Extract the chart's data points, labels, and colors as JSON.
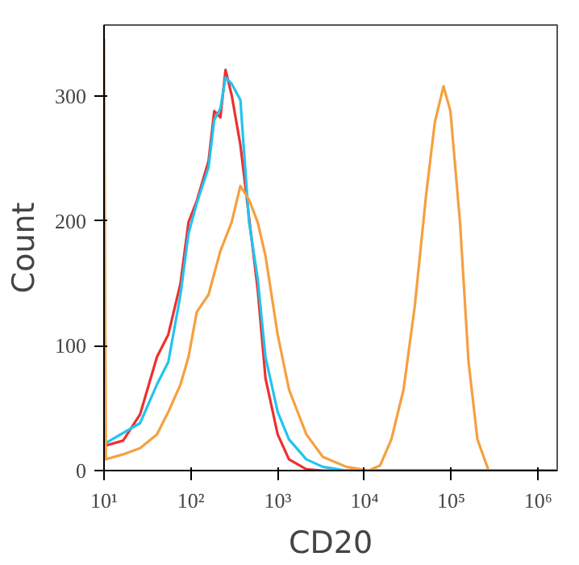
{
  "chart_data": {
    "type": "line",
    "xlabel": "CD20",
    "ylabel": "Count",
    "log": "x",
    "marker": "none",
    "line_style": "solid",
    "xlim": [
      10,
      1660000
    ],
    "ylim": [
      0,
      357
    ],
    "xticks": [
      {
        "value": 10,
        "label": "10¹"
      },
      {
        "value": 100,
        "label": "10²"
      },
      {
        "value": 1000,
        "label": "10³"
      },
      {
        "value": 10000,
        "label": "10⁴"
      },
      {
        "value": 100000,
        "label": "10⁵"
      },
      {
        "value": 1000000,
        "label": "10⁶"
      }
    ],
    "yticks": [
      0,
      100,
      200,
      300
    ],
    "series": [
      {
        "color": "#ee3030",
        "x": [
          10.5,
          16.6,
          26,
          40.7,
          55,
          76,
          94,
          117,
          160,
          186,
          219,
          251,
          295,
          372,
          468,
          589,
          724,
          1000,
          1350,
          2140,
          3310,
          1660000
        ],
        "values": [
          20,
          24,
          45,
          91,
          109,
          150,
          199,
          216,
          248,
          288,
          283,
          321,
          301,
          261,
          203,
          145,
          74,
          29,
          9,
          1,
          0,
          0
        ]
      },
      {
        "color": "#22c4ee",
        "x": [
          10.5,
          26,
          40.7,
          55,
          76,
          94,
          117,
          160,
          186,
          219,
          251,
          295,
          372,
          468,
          589,
          724,
          1000,
          1350,
          2140,
          3310,
          6170,
          1660000
        ],
        "values": [
          22,
          38,
          69,
          87,
          141,
          190,
          214,
          243,
          281,
          290,
          315,
          310,
          297,
          199,
          154,
          91,
          47,
          25,
          9,
          3,
          0,
          0
        ]
      },
      {
        "color": "#f5a040",
        "x": [
          10,
          10.5,
          16.6,
          26,
          40.7,
          55,
          76,
          94,
          117,
          160,
          219,
          295,
          372,
          468,
          589,
          724,
          1000,
          1350,
          2140,
          3310,
          6170,
          11200,
          15100,
          20400,
          28200,
          38000,
          51300,
          64600,
          81300,
          97700,
          126000,
          158000,
          200000,
          269000,
          1660000
        ],
        "values": [
          346,
          9,
          13,
          18,
          29,
          47,
          69,
          91,
          127,
          141,
          176,
          199,
          228,
          217,
          199,
          172,
          109,
          65,
          29,
          11,
          3,
          0,
          4,
          25,
          65,
          132,
          221,
          279,
          308,
          288,
          199,
          87,
          25,
          0,
          0
        ]
      }
    ]
  }
}
